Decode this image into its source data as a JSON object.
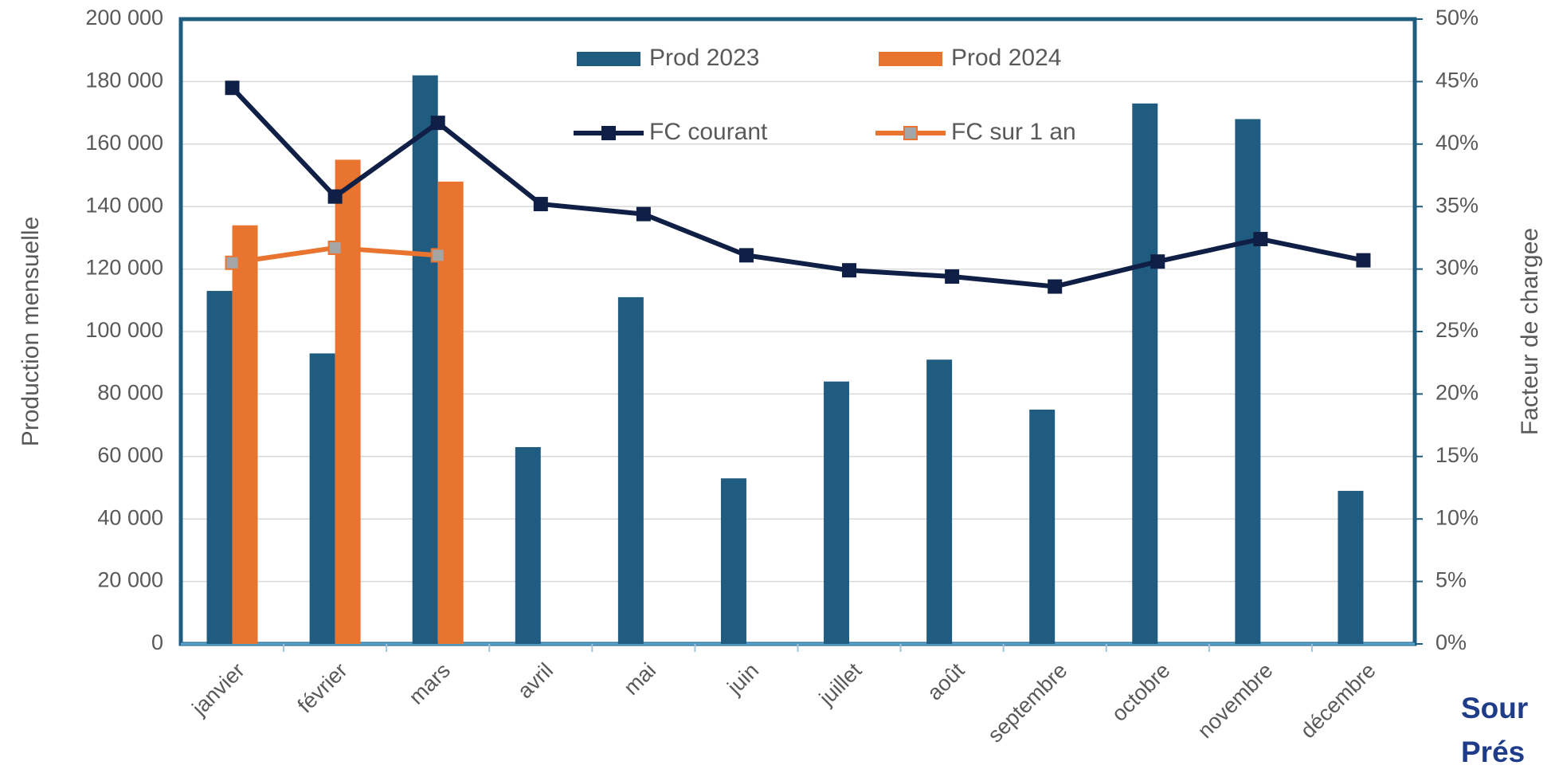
{
  "chart_data": {
    "type": "bar-line",
    "categories": [
      "janvier",
      "février",
      "mars",
      "avril",
      "mai",
      "juin",
      "juillet",
      "août",
      "septembre",
      "octobre",
      "novembre",
      "décembre"
    ],
    "series": [
      {
        "name": "Prod 2023",
        "type": "bar",
        "color": "#1f5c80",
        "values": [
          113000,
          93000,
          182000,
          63000,
          111000,
          53000,
          84000,
          91000,
          75000,
          173000,
          168000,
          49000
        ]
      },
      {
        "name": "Prod 2024",
        "type": "bar",
        "color": "#e8742f",
        "values": [
          134000,
          155000,
          148000,
          null,
          null,
          null,
          null,
          null,
          null,
          null,
          null,
          null
        ]
      },
      {
        "name": "FC courant",
        "type": "line",
        "axis": "y2",
        "color": "#0f1f45",
        "values": [
          44.5,
          35.8,
          41.7,
          35.2,
          34.4,
          31.1,
          29.9,
          29.4,
          28.6,
          30.6,
          32.4,
          30.7
        ]
      },
      {
        "name": "FC sur 1 an",
        "type": "line",
        "axis": "y2",
        "color": "#e8742f",
        "values": [
          30.5,
          31.7,
          31.1,
          null,
          null,
          null,
          null,
          null,
          null,
          null,
          null,
          null
        ]
      }
    ],
    "ylabel": "Production mensuelle",
    "y2label": "Facteur de chargee",
    "ylim": [
      0,
      200000
    ],
    "yticks": [
      0,
      {
        "value": 20000,
        "label": "20 000"
      },
      {
        "value": 40000,
        "label": "40 000"
      },
      {
        "value": 60000,
        "label": "60 000"
      },
      {
        "value": 80000,
        "label": "80 000"
      },
      {
        "value": 100000,
        "label": "100 000"
      },
      {
        "value": 120000,
        "label": "120 000"
      },
      {
        "value": 140000,
        "label": "140 000"
      },
      {
        "value": 160000,
        "label": "160 000"
      },
      {
        "value": 180000,
        "label": "180 000"
      },
      {
        "value": 200000,
        "label": "200 000"
      }
    ],
    "y2lim": [
      0,
      50
    ],
    "y2ticks": [
      {
        "value": 0,
        "label": "0%"
      },
      {
        "value": 5,
        "label": "5%"
      },
      {
        "value": 10,
        "label": "10%"
      },
      {
        "value": 15,
        "label": "15%"
      },
      {
        "value": 20,
        "label": "20%"
      },
      {
        "value": 25,
        "label": "25%"
      },
      {
        "value": 30,
        "label": "30%"
      },
      {
        "value": 35,
        "label": "35%"
      },
      {
        "value": 40,
        "label": "40%"
      },
      {
        "value": 45,
        "label": "45%"
      },
      {
        "value": 50,
        "label": "50%"
      }
    ],
    "grid": true,
    "legend": "top",
    "annotations": [
      "Sour",
      "Prés"
    ]
  }
}
